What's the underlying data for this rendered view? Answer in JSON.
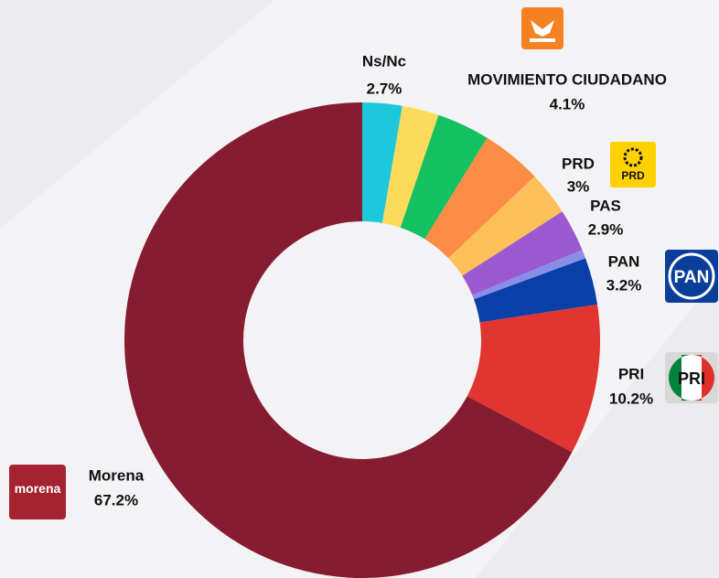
{
  "chart_data": {
    "type": "donut",
    "categories": [
      "Ns/Nc",
      null,
      null,
      "MOVIMIENTO CIUDADANO",
      "PRD",
      "PAS",
      null,
      "PAN",
      "PRI",
      "Morena"
    ],
    "values": [
      2.7,
      2.5,
      3.6,
      4.1,
      3,
      2.9,
      0.6,
      3.2,
      10.2,
      67.2
    ],
    "value_labels": [
      "2.7%",
      null,
      null,
      "4.1%",
      "3%",
      "2.9%",
      null,
      "3.2%",
      "10.2%",
      "67.2%"
    ],
    "colors": [
      "#1ec8dc",
      "#fddb5a",
      "#14c060",
      "#fd8c45",
      "#fec05a",
      "#9b59d0",
      "#8a8ee8",
      "#0a3fa8",
      "#e03530",
      "#861c30"
    ]
  },
  "logos": {
    "prd": "PRD",
    "pan": "PAN",
    "pri": "PRI",
    "morena": "morena"
  }
}
